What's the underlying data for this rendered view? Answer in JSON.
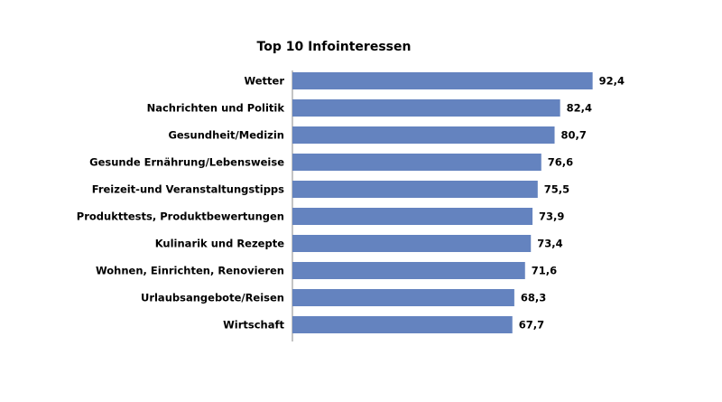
{
  "chart_data": {
    "type": "bar",
    "orientation": "horizontal",
    "title": "Top 10 Infointeressen",
    "categories": [
      "Wetter",
      "Nachrichten und Politik",
      "Gesundheit/Medizin",
      "Gesunde Ernährung/Lebensweise",
      "Freizeit-und Veranstaltungstipps",
      "Produkttests, Produktbewertungen",
      "Kulinarik und Rezepte",
      "Wohnen, Einrichten, Renovieren",
      "Urlaubsangebote/Reisen",
      "Wirtschaft"
    ],
    "values": [
      92.4,
      82.4,
      80.7,
      76.6,
      75.5,
      73.9,
      73.4,
      71.6,
      68.3,
      67.7
    ],
    "value_labels": [
      "92,4",
      "82,4",
      "80,7",
      "76,6",
      "75,5",
      "73,9",
      "73,4",
      "71,6",
      "68,3",
      "67,7"
    ],
    "xlim": [
      0,
      100
    ],
    "grid": false,
    "legend": "none",
    "bar_color": "#6483bf"
  }
}
